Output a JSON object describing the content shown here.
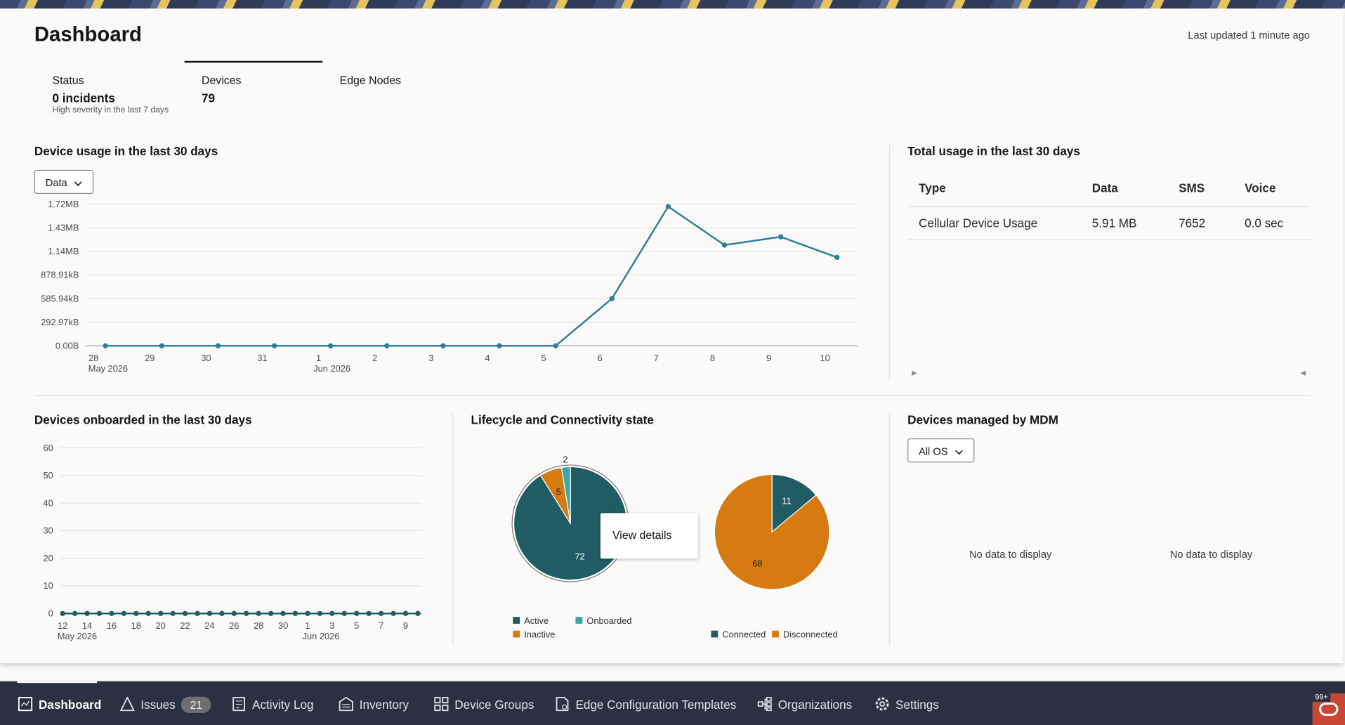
{
  "header": {
    "title": "Dashboard",
    "last_updated": "Last updated 1 minute ago"
  },
  "tabs": [
    {
      "label": "Status",
      "value": "0 incidents",
      "note": "High severity in the last 7 days"
    },
    {
      "label": "Devices",
      "value": "79"
    },
    {
      "label": "Edge Nodes"
    }
  ],
  "usage_chart": {
    "type": "line",
    "title": "Device usage in the last 30 days",
    "dropdown": "Data",
    "categories": [
      "28",
      "29",
      "30",
      "31",
      "1",
      "2",
      "3",
      "4",
      "5",
      "6",
      "7",
      "8",
      "9",
      "10"
    ],
    "period_labels": [
      "May 2026",
      null,
      null,
      null,
      "Jun 2026",
      null,
      null,
      null,
      null,
      null,
      null,
      null,
      null,
      null
    ],
    "values": [
      0,
      0,
      0,
      0,
      0,
      0,
      0,
      0,
      0,
      600000,
      1770000,
      1280000,
      1385000,
      1124000
    ],
    "color": "#2a7f9e",
    "ylim": [
      0,
      1800000
    ],
    "yticks": [
      {
        "value": 0,
        "label": "0.00B"
      },
      {
        "value": 300000,
        "label": "292.97kB"
      },
      {
        "value": 600000,
        "label": "585.94kB"
      },
      {
        "value": 900000,
        "label": "878.91kB"
      },
      {
        "value": 1200000,
        "label": "1.14MB"
      },
      {
        "value": 1500000,
        "label": "1.43MB"
      },
      {
        "value": 1800000,
        "label": "1.72MB"
      }
    ],
    "grid": true
  },
  "total_usage": {
    "title": "Total usage in the last 30 days",
    "columns": [
      "Type",
      "Data",
      "SMS",
      "Voice"
    ],
    "rows": [
      [
        "Cellular Device Usage",
        "5.91 MB",
        "7652",
        "0.0 sec"
      ]
    ]
  },
  "onboarded_chart": {
    "type": "line",
    "title": "Devices onboarded in the last 30 days",
    "categories": [
      "12",
      null,
      "14",
      null,
      "16",
      null,
      "18",
      null,
      "20",
      null,
      "22",
      null,
      "24",
      null,
      "26",
      null,
      "28",
      null,
      "30",
      null,
      "1",
      null,
      "3",
      null,
      "5",
      null,
      "7",
      null,
      "9",
      null
    ],
    "period_labels": [
      "May 2026",
      null,
      null,
      null,
      null,
      null,
      null,
      null,
      null,
      null,
      null,
      null,
      null,
      null,
      null,
      null,
      null,
      null,
      null,
      null,
      "Jun 2026",
      null,
      null,
      null,
      null,
      null,
      null,
      null,
      null,
      null
    ],
    "values": [
      0,
      0,
      0,
      0,
      0,
      0,
      0,
      0,
      0,
      0,
      0,
      0,
      0,
      0,
      0,
      0,
      0,
      0,
      0,
      0,
      0,
      0,
      0,
      0,
      0,
      0,
      0,
      0,
      0,
      0
    ],
    "color": "#1f5c63",
    "ylim": [
      0,
      60
    ],
    "yticks": [
      0,
      10,
      20,
      30,
      40,
      50,
      60
    ],
    "grid": true
  },
  "lifecycle": {
    "title": "Lifecycle and Connectivity state",
    "tooltip": "View details",
    "pies": [
      {
        "type": "pie",
        "series": [
          {
            "name": "Active",
            "value": 72,
            "color": "#1f5c63"
          },
          {
            "name": "Inactive",
            "value": 5,
            "color": "#d67a12"
          },
          {
            "name": "Onboarded",
            "value": 2,
            "color": "#3aa9a6"
          }
        ]
      },
      {
        "type": "pie",
        "series": [
          {
            "name": "Connected",
            "value": 11,
            "color": "#1f5c63"
          },
          {
            "name": "Disconnected",
            "value": 68,
            "color": "#d67a12"
          }
        ]
      }
    ]
  },
  "mdm": {
    "title": "Devices managed by MDM",
    "dropdown": "All OS",
    "empty": [
      "No data to display",
      "No data to display"
    ]
  },
  "nav": {
    "items": [
      "Dashboard",
      "Issues",
      "Activity Log",
      "Inventory",
      "Device Groups",
      "Edge Configuration Templates",
      "Organizations",
      "Settings"
    ],
    "issues_count": "21",
    "notification_badge": "99+"
  }
}
